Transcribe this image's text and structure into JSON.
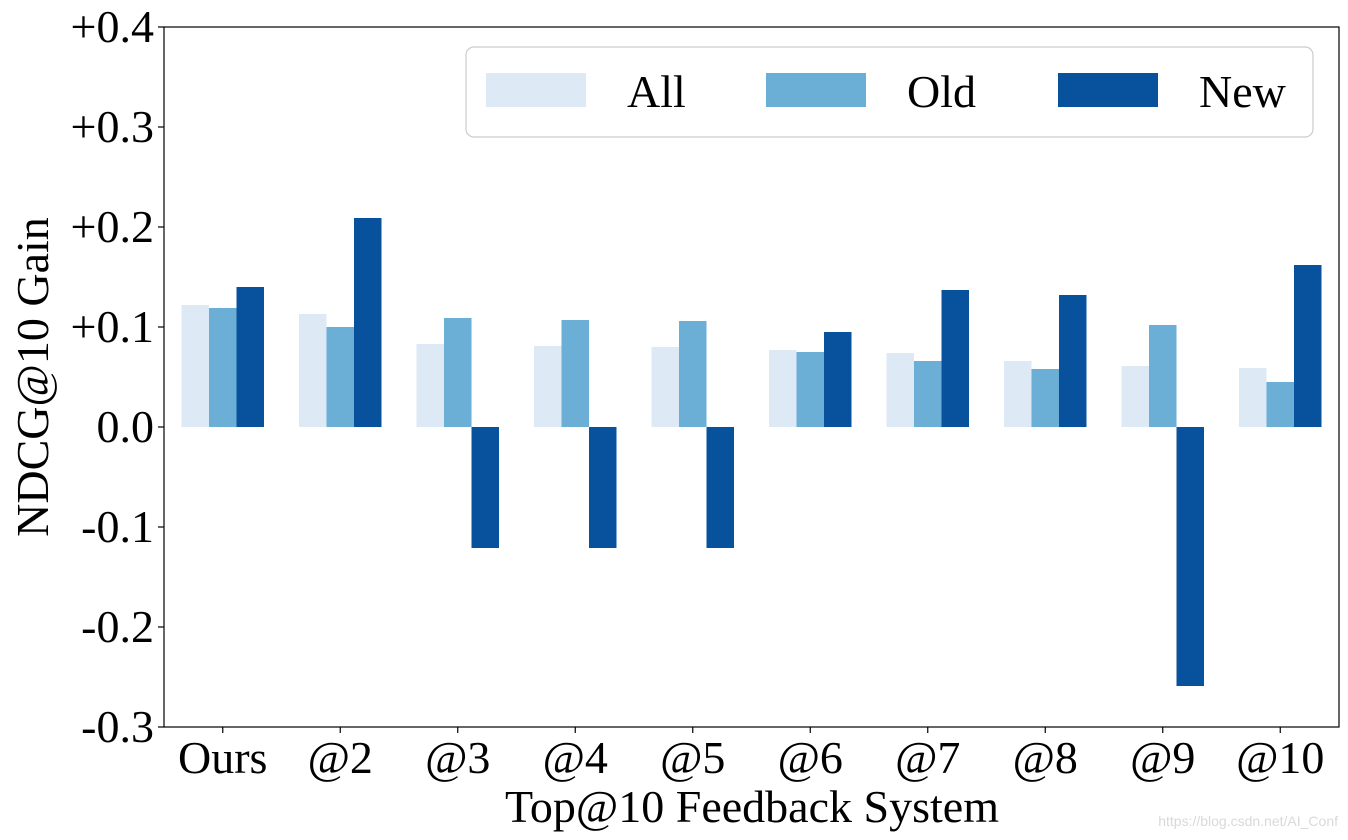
{
  "chart_data": {
    "type": "bar",
    "xlabel": "Top@10 Feedback System",
    "ylabel": "NDCG@10 Gain",
    "ylim": [
      -0.3,
      0.4
    ],
    "yticks": [
      {
        "value": 0.4,
        "label": "+0.4"
      },
      {
        "value": 0.3,
        "label": "+0.3"
      },
      {
        "value": 0.2,
        "label": "+0.2"
      },
      {
        "value": 0.1,
        "label": "+0.1"
      },
      {
        "value": 0.0,
        "label": "0.0"
      },
      {
        "value": -0.1,
        "label": "-0.1"
      },
      {
        "value": -0.2,
        "label": "-0.2"
      },
      {
        "value": -0.3,
        "label": "-0.3"
      }
    ],
    "grid": false,
    "legend": {
      "placement": "top-right",
      "columns": 3
    },
    "categories": [
      "Ours",
      "@2",
      "@3",
      "@4",
      "@5",
      "@6",
      "@7",
      "@8",
      "@9",
      "@10"
    ],
    "series": [
      {
        "name": "All",
        "color": "#dde9f5",
        "values": [
          0.122,
          0.113,
          0.083,
          0.081,
          0.08,
          0.077,
          0.074,
          0.066,
          0.061,
          0.059
        ]
      },
      {
        "name": "Old",
        "color": "#6baed6",
        "values": [
          0.119,
          0.1,
          0.109,
          0.107,
          0.106,
          0.075,
          0.066,
          0.058,
          0.102,
          0.045
        ]
      },
      {
        "name": "New",
        "color": "#08519c",
        "values": [
          0.14,
          0.209,
          -0.121,
          -0.121,
          -0.121,
          0.095,
          0.137,
          0.132,
          -0.259,
          0.162
        ]
      }
    ]
  },
  "watermark": "https://blog.csdn.net/AI_Conf"
}
